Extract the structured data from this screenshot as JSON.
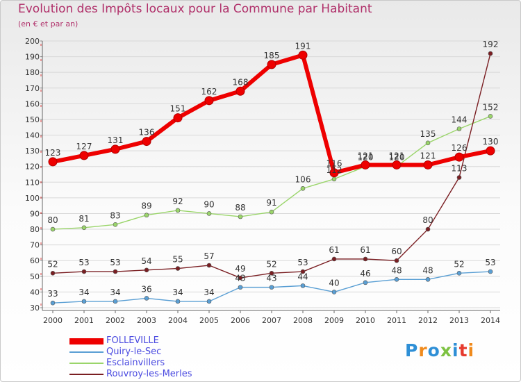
{
  "header": {
    "title": "Evolution des Impôts locaux pour la Commune par Habitant",
    "subtitle": "(en € et par an)"
  },
  "logo": {
    "text": "Proxiti",
    "colors": [
      "#2e8fd6",
      "#f08a1c",
      "#2e8fd6",
      "#7dc242",
      "#2e8fd6",
      "#e63a2e",
      "#f08a1c"
    ]
  },
  "colors": {
    "title": "#b0306a",
    "axis_text": "#333333",
    "grid": "#d8d8d8",
    "legend_text": "#4a4ae0"
  },
  "chart_data": {
    "type": "line",
    "title": "Evolution des Impôts locaux pour la Commune par Habitant",
    "subtitle": "(en € et par an)",
    "xlabel": "",
    "ylabel": "",
    "x": [
      2000,
      2001,
      2002,
      2003,
      2004,
      2005,
      2006,
      2007,
      2008,
      2009,
      2010,
      2011,
      2012,
      2013,
      2014
    ],
    "ylim": [
      30,
      200
    ],
    "yticks": [
      30,
      40,
      50,
      60,
      70,
      80,
      90,
      100,
      110,
      120,
      130,
      140,
      150,
      160,
      170,
      180,
      190,
      200
    ],
    "grid": "horizontal",
    "legend_position": "bottom-left",
    "series": [
      {
        "name": "FOLLEVILLE",
        "color": "#ee0000",
        "width": 6,
        "values": [
          123,
          127,
          131,
          136,
          151,
          162,
          168,
          185,
          191,
          116,
          121,
          121,
          121,
          126,
          130
        ]
      },
      {
        "name": "Quiry-le-Sec",
        "color": "#5a9fd4",
        "width": 1.4,
        "values": [
          33,
          34,
          34,
          36,
          34,
          34,
          43,
          43,
          44,
          40,
          46,
          48,
          48,
          52,
          53
        ]
      },
      {
        "name": "Esclainvillers",
        "color": "#9ad56a",
        "width": 1.4,
        "values": [
          80,
          81,
          83,
          89,
          92,
          90,
          88,
          91,
          106,
          112,
          120,
          120,
          135,
          144,
          152
        ]
      },
      {
        "name": "Rouvroy-les-Merles",
        "color": "#7a1e22",
        "width": 1.4,
        "values": [
          52,
          53,
          53,
          54,
          55,
          57,
          49,
          52,
          53,
          61,
          61,
          60,
          80,
          113,
          192
        ]
      }
    ]
  }
}
